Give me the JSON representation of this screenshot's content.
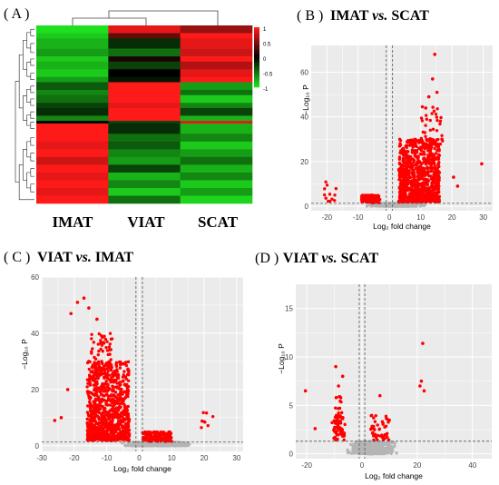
{
  "colors": {
    "heat_high": "#ff1a1a",
    "heat_mid": "#000000",
    "heat_low": "#1fe01f",
    "sig_point": "#ff0000",
    "ns_point": "#b5b5b5",
    "panel_bg": "#ebebeb",
    "grid": "#ffffff",
    "threshold_line": "#555555"
  },
  "panelA": {
    "label": "( A )",
    "columns": [
      "IMAT",
      "VIAT",
      "SCAT"
    ],
    "colorkey": [
      "1",
      "0.5",
      "0",
      "-0.5",
      "-1"
    ],
    "rows": [
      [
        -1.0,
        0.9,
        0.6
      ],
      [
        -0.9,
        0.4,
        1.0
      ],
      [
        -0.8,
        -0.2,
        0.9
      ],
      [
        -0.7,
        -0.5,
        0.8
      ],
      [
        -0.9,
        0.1,
        1.0
      ],
      [
        -0.8,
        -0.3,
        0.7
      ],
      [
        -0.9,
        0.0,
        0.9
      ],
      [
        -0.7,
        -0.1,
        1.0
      ],
      [
        -0.4,
        1.0,
        -0.7
      ],
      [
        -0.6,
        1.0,
        -0.5
      ],
      [
        -0.5,
        1.0,
        -0.9
      ],
      [
        -0.3,
        0.9,
        -0.6
      ],
      [
        -0.2,
        1.0,
        -0.3
      ],
      [
        -0.6,
        1.0,
        -0.8
      ],
      [
        0.0,
        -0.3,
        0.9
      ],
      [
        1.0,
        -0.2,
        -0.8
      ],
      [
        1.0,
        -0.5,
        -0.6
      ],
      [
        0.9,
        -0.4,
        -0.9
      ],
      [
        1.0,
        -0.6,
        -0.7
      ],
      [
        0.8,
        -0.7,
        -0.5
      ],
      [
        1.0,
        -0.3,
        -0.8
      ],
      [
        0.9,
        -0.8,
        -0.6
      ],
      [
        1.0,
        -0.6,
        -0.9
      ],
      [
        0.9,
        -0.9,
        -0.7
      ],
      [
        1.0,
        -0.5,
        -0.95
      ]
    ],
    "row_weights": [
      3,
      2,
      4,
      3,
      2,
      3,
      3,
      2,
      3,
      2,
      3,
      2,
      3,
      2,
      1,
      4,
      3,
      3,
      3,
      3,
      3,
      3,
      3,
      3,
      3
    ]
  },
  "chart_data": [
    {
      "type": "scatter",
      "panel_label": "( B )",
      "title": "IMAT vs. SCAT",
      "xlabel": "Log₂ fold change",
      "ylabel": "−Log₁₀ P",
      "xlim": [
        -25,
        33
      ],
      "ylim": [
        -2,
        72
      ],
      "xticks": [
        -20,
        -10,
        0,
        10,
        20,
        30
      ],
      "yticks": [
        0,
        20,
        40,
        60
      ],
      "fc_cutoff": 1,
      "p_cutoff": 1.3,
      "seed": 11,
      "sig_clusters": [
        {
          "n": 120,
          "x": [
            -9,
            -3
          ],
          "y": [
            1.5,
            5
          ]
        },
        {
          "n": 900,
          "x": [
            3,
            16
          ],
          "y": [
            2,
            30
          ],
          "skew": 1.6
        },
        {
          "n": 40,
          "x": [
            10,
            17
          ],
          "y": [
            25,
            45
          ]
        },
        {
          "n": 12,
          "x": [
            -21,
            -17
          ],
          "y": [
            2,
            11
          ]
        }
      ],
      "sig_points": [
        {
          "x": 14.5,
          "y": 68
        },
        {
          "x": 15.2,
          "y": 51
        },
        {
          "x": 13.8,
          "y": 57
        },
        {
          "x": 12.6,
          "y": 49
        },
        {
          "x": 11.6,
          "y": 44
        },
        {
          "x": 16.8,
          "y": 30
        },
        {
          "x": 29.5,
          "y": 19
        },
        {
          "x": 20.5,
          "y": 13
        },
        {
          "x": 21.8,
          "y": 9
        }
      ],
      "ns_cluster": {
        "n": 600,
        "x": [
          -8,
          12
        ],
        "y": [
          0,
          1.3
        ]
      }
    },
    {
      "type": "scatter",
      "panel_label": "( C )",
      "title": "VIAT vs. IMAT",
      "xlabel": "Log₂ fold change",
      "ylabel": "−Log₁₀ P",
      "xlim": [
        -30,
        32
      ],
      "ylim": [
        -2,
        60
      ],
      "xticks": [
        -30,
        -20,
        -10,
        0,
        10,
        20,
        30
      ],
      "yticks": [
        0,
        20,
        40,
        60
      ],
      "fc_cutoff": 1,
      "p_cutoff": 1.3,
      "seed": 23,
      "sig_clusters": [
        {
          "n": 900,
          "x": [
            -16,
            -3
          ],
          "y": [
            2,
            30
          ],
          "skew": 1.6
        },
        {
          "n": 60,
          "x": [
            -15,
            -8
          ],
          "y": [
            25,
            40
          ]
        },
        {
          "n": 140,
          "x": [
            1,
            10
          ],
          "y": [
            1.5,
            5
          ]
        },
        {
          "n": 8,
          "x": [
            19,
            23
          ],
          "y": [
            6,
            12
          ]
        }
      ],
      "sig_points": [
        {
          "x": -17,
          "y": 52.5
        },
        {
          "x": -19,
          "y": 51
        },
        {
          "x": -15.5,
          "y": 49
        },
        {
          "x": -21,
          "y": 47
        },
        {
          "x": -13,
          "y": 45
        },
        {
          "x": -24,
          "y": 10
        },
        {
          "x": -22,
          "y": 20
        },
        {
          "x": -26,
          "y": 9
        }
      ],
      "ns_cluster": {
        "n": 600,
        "x": [
          -7,
          17
        ],
        "y": [
          0,
          1.3
        ]
      }
    },
    {
      "type": "scatter",
      "panel_label": "(D )",
      "title": "VIAT vs. SCAT",
      "xlabel": "Log₂ fold change",
      "ylabel": "−Log₁₀ P",
      "xlim": [
        -24,
        47
      ],
      "ylim": [
        -0.5,
        17.5
      ],
      "xticks": [
        -20,
        0,
        20,
        40
      ],
      "yticks": [
        0,
        5,
        10,
        15
      ],
      "fc_cutoff": 1,
      "p_cutoff": 1.3,
      "seed": 37,
      "sig_clusters": [
        {
          "n": 55,
          "x": [
            -11,
            -6
          ],
          "y": [
            1.4,
            4
          ]
        },
        {
          "n": 20,
          "x": [
            -10,
            -7
          ],
          "y": [
            3,
            6
          ]
        },
        {
          "n": 45,
          "x": [
            3,
            10
          ],
          "y": [
            1.4,
            4
          ]
        }
      ],
      "sig_points": [
        {
          "x": -9.5,
          "y": 9
        },
        {
          "x": -7,
          "y": 8
        },
        {
          "x": -8.5,
          "y": 7
        },
        {
          "x": -20.5,
          "y": 6.5
        },
        {
          "x": -17,
          "y": 2.6
        },
        {
          "x": 6.5,
          "y": 6
        },
        {
          "x": 22,
          "y": 11.4
        },
        {
          "x": 21.5,
          "y": 7.5
        },
        {
          "x": 22.5,
          "y": 6.5
        },
        {
          "x": 21,
          "y": 7
        }
      ],
      "ns_cluster": {
        "n": 500,
        "x": [
          -7,
          14
        ],
        "y": [
          0,
          1.3
        ]
      }
    }
  ]
}
